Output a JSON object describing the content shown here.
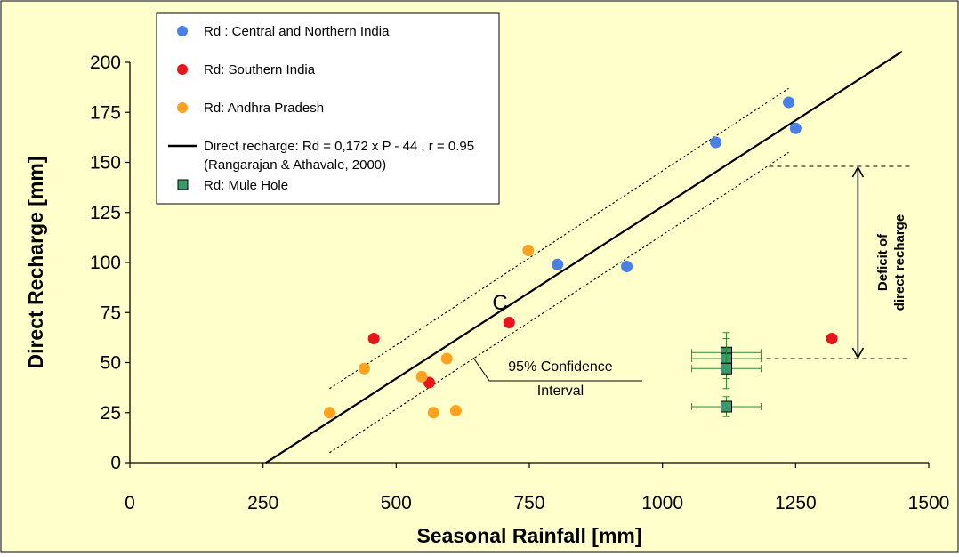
{
  "chart_data": {
    "type": "scatter",
    "xlabel": "Seasonal Rainfall [mm]",
    "ylabel": "Direct Recharge [mm]",
    "xlim": [
      0,
      1500
    ],
    "ylim": [
      0,
      200
    ],
    "x_ticks": [
      0,
      250,
      500,
      750,
      1000,
      1250,
      1500
    ],
    "y_ticks": [
      0,
      25,
      50,
      75,
      100,
      125,
      150,
      175,
      200
    ],
    "background": "#FFFFCC",
    "grid": false,
    "legend_position": "top-left",
    "series": [
      {
        "name": "Rd : Central and Northern India",
        "marker": "circle",
        "color": "#4A7FE8",
        "points": [
          [
            803,
            99
          ],
          [
            933,
            98
          ],
          [
            1100,
            160
          ],
          [
            1237,
            180
          ],
          [
            1250,
            167
          ]
        ]
      },
      {
        "name": "Rd: Southern India",
        "marker": "circle",
        "color": "#E8151B",
        "points": [
          [
            458,
            62
          ],
          [
            562,
            40
          ],
          [
            712,
            70
          ],
          [
            1318,
            62
          ]
        ]
      },
      {
        "name": "Rd: Andhra Pradesh",
        "marker": "circle",
        "color": "#FFA21F",
        "points": [
          [
            375,
            25
          ],
          [
            440,
            47
          ],
          [
            548,
            43
          ],
          [
            570,
            25
          ],
          [
            595,
            52
          ],
          [
            612,
            26
          ],
          [
            748,
            106
          ]
        ]
      },
      {
        "name": "Rd: Mule Hole",
        "marker": "square",
        "color": "#3A9B6A",
        "error_color": "#2E8B2E",
        "points": [
          {
            "x": 1120,
            "y": 55,
            "xerr": 65,
            "yerr": 10
          },
          {
            "x": 1120,
            "y": 52,
            "xerr": 65,
            "yerr": 10
          },
          {
            "x": 1120,
            "y": 47,
            "xerr": 65,
            "yerr": 10
          },
          {
            "x": 1120,
            "y": 28,
            "xerr": 65,
            "yerr": 5
          }
        ]
      }
    ],
    "regression": {
      "label": "Direct recharge: Rd = 0,172 x P - 44 , r = 0.95",
      "source": "(Rangarajan & Athavale, 2000)",
      "slope": 0.172,
      "intercept": -44,
      "x_range": [
        255,
        1450
      ]
    },
    "confidence_band": {
      "x_range": [
        375,
        1237
      ],
      "upper": [
        [
          375,
          37
        ],
        [
          1237,
          187
        ]
      ],
      "lower": [
        [
          375,
          5
        ],
        [
          1237,
          155
        ]
      ]
    },
    "annotations": {
      "confidence_label_line1": "95% Confidence",
      "confidence_label_line2": "Interval",
      "curve_marker": "C",
      "deficit_line1": "Deficit of",
      "deficit_line2": "direct recharge",
      "deficit_upper_y": 148,
      "deficit_lower_y": 52,
      "deficit_upper_x_range": [
        1200,
        1465
      ],
      "deficit_lower_x_range": [
        1150,
        1465
      ],
      "deficit_arrow_x": 1367
    }
  }
}
